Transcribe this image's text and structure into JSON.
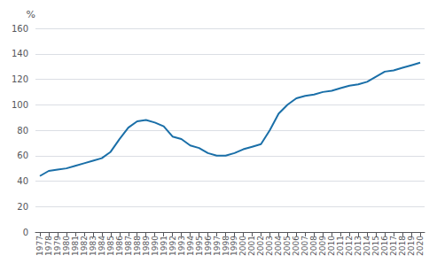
{
  "chart_data": {
    "type": "line",
    "ylabel": "%",
    "x": [
      1977,
      1978,
      1979,
      1980,
      1981,
      1982,
      1983,
      1984,
      1985,
      1986,
      1987,
      1988,
      1989,
      1990,
      1991,
      1992,
      1993,
      1994,
      1995,
      1996,
      1997,
      1998,
      1999,
      2000,
      2001,
      2002,
      2003,
      2004,
      2005,
      2006,
      2007,
      2008,
      2009,
      2010,
      2011,
      2012,
      2013,
      2014,
      2015,
      2016,
      2017,
      2018,
      2019,
      2020
    ],
    "values": [
      44,
      48,
      49,
      50,
      52,
      54,
      56,
      58,
      63,
      73,
      82,
      87,
      88,
      86,
      83,
      75,
      73,
      68,
      66,
      62,
      60,
      60,
      62,
      65,
      67,
      69,
      80,
      93,
      100,
      105,
      107,
      108,
      110,
      111,
      113,
      115,
      116,
      118,
      122,
      126,
      127,
      129,
      131,
      133
    ],
    "color": "#1a6fa8",
    "xlim": [
      1976.5,
      2020.5
    ],
    "xticks": [
      1977,
      1978,
      1979,
      1980,
      1981,
      1982,
      1983,
      1984,
      1985,
      1986,
      1987,
      1988,
      1989,
      1990,
      1991,
      1992,
      1993,
      1994,
      1995,
      1996,
      1997,
      1998,
      1999,
      2000,
      2001,
      2002,
      2003,
      2004,
      2005,
      2006,
      2007,
      2008,
      2009,
      2010,
      2011,
      2012,
      2013,
      2014,
      2015,
      2016,
      2017,
      2018,
      2019,
      2020
    ],
    "ylim": [
      0,
      160
    ],
    "yticks": [
      0,
      20,
      40,
      60,
      80,
      100,
      120,
      140,
      160
    ],
    "grid": true
  }
}
